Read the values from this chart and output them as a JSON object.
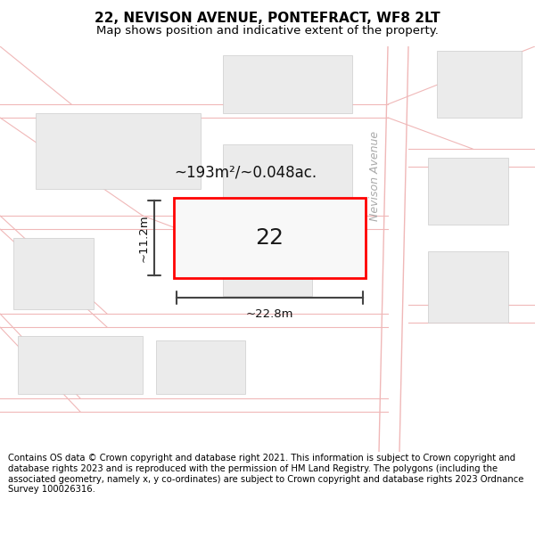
{
  "title": "22, NEVISON AVENUE, PONTEFRACT, WF8 2LT",
  "subtitle": "Map shows position and indicative extent of the property.",
  "footer": "Contains OS data © Crown copyright and database right 2021. This information is subject to Crown copyright and database rights 2023 and is reproduced with the permission of HM Land Registry. The polygons (including the associated geometry, namely x, y co-ordinates) are subject to Crown copyright and database rights 2023 Ordnance Survey 100026316.",
  "bg_color": "#ffffff",
  "road_color": "#f0b8b8",
  "building_color": "#ebebeb",
  "building_edge": "#cccccc",
  "plot_color": "#f8f8f8",
  "plot_edge": "#ff0000",
  "dim_color": "#444444",
  "road_label": "Nevison Avenue",
  "plot_label": "22",
  "area_label": "~193m²/~0.048ac.",
  "width_label": "~22.8m",
  "height_label": "~11.2m",
  "title_fontsize": 11,
  "subtitle_fontsize": 9.5,
  "footer_fontsize": 7.2
}
